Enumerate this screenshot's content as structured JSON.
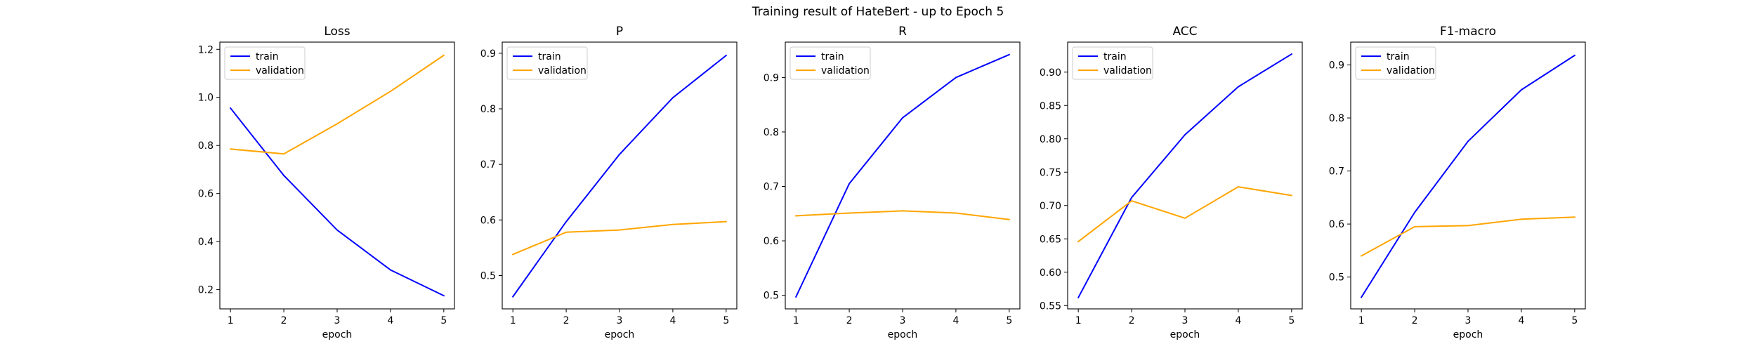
{
  "figure": {
    "title": "Training result of HateBert - up to Epoch 5"
  },
  "colors": {
    "train": "#0000ff",
    "validation": "#ffa500"
  },
  "chart_data": [
    {
      "type": "line",
      "title": "Loss",
      "xlabel": "epoch",
      "ylabel": "",
      "x": [
        1,
        2,
        3,
        4,
        5
      ],
      "xlim": [
        0.8,
        5.2
      ],
      "ylim": [
        0.12,
        1.23
      ],
      "yticks": [
        0.2,
        0.4,
        0.6,
        0.8,
        1.0,
        1.2
      ],
      "ytick_labels": [
        "0.2",
        "0.4",
        "0.6",
        "0.8",
        "1.0",
        "1.2"
      ],
      "legend": "upper left",
      "grid": false,
      "series": [
        {
          "name": "train",
          "values": [
            0.955,
            0.675,
            0.448,
            0.282,
            0.175
          ]
        },
        {
          "name": "validation",
          "values": [
            0.785,
            0.765,
            0.89,
            1.025,
            1.175
          ]
        }
      ]
    },
    {
      "type": "line",
      "title": "P",
      "xlabel": "epoch",
      "ylabel": "",
      "x": [
        1,
        2,
        3,
        4,
        5
      ],
      "xlim": [
        0.8,
        5.2
      ],
      "ylim": [
        0.44,
        0.92
      ],
      "yticks": [
        0.5,
        0.6,
        0.7,
        0.8,
        0.9
      ],
      "ytick_labels": [
        "0.5",
        "0.6",
        "0.7",
        "0.8",
        "0.9"
      ],
      "legend": "upper left",
      "grid": false,
      "series": [
        {
          "name": "train",
          "values": [
            0.462,
            0.597,
            0.718,
            0.82,
            0.896
          ]
        },
        {
          "name": "validation",
          "values": [
            0.538,
            0.578,
            0.582,
            0.592,
            0.597
          ]
        }
      ]
    },
    {
      "type": "line",
      "title": "R",
      "xlabel": "epoch",
      "ylabel": "",
      "x": [
        1,
        2,
        3,
        4,
        5
      ],
      "xlim": [
        0.8,
        5.2
      ],
      "ylim": [
        0.475,
        0.965
      ],
      "yticks": [
        0.5,
        0.6,
        0.7,
        0.8,
        0.9
      ],
      "ytick_labels": [
        "0.5",
        "0.6",
        "0.7",
        "0.8",
        "0.9"
      ],
      "legend": "upper left",
      "grid": false,
      "series": [
        {
          "name": "train",
          "values": [
            0.497,
            0.705,
            0.826,
            0.9,
            0.942
          ]
        },
        {
          "name": "validation",
          "values": [
            0.646,
            0.651,
            0.655,
            0.651,
            0.639
          ]
        }
      ]
    },
    {
      "type": "line",
      "title": "ACC",
      "xlabel": "epoch",
      "ylabel": "",
      "x": [
        1,
        2,
        3,
        4,
        5
      ],
      "xlim": [
        0.8,
        5.2
      ],
      "ylim": [
        0.545,
        0.945
      ],
      "yticks": [
        0.55,
        0.6,
        0.65,
        0.7,
        0.75,
        0.8,
        0.85,
        0.9
      ],
      "ytick_labels": [
        "0.55",
        "0.60",
        "0.65",
        "0.70",
        "0.75",
        "0.80",
        "0.85",
        "0.90"
      ],
      "legend": "upper left",
      "grid": false,
      "series": [
        {
          "name": "train",
          "values": [
            0.562,
            0.712,
            0.806,
            0.878,
            0.927
          ]
        },
        {
          "name": "validation",
          "values": [
            0.646,
            0.707,
            0.681,
            0.728,
            0.715
          ]
        }
      ]
    },
    {
      "type": "line",
      "title": "F1-macro",
      "xlabel": "epoch",
      "ylabel": "",
      "x": [
        1,
        2,
        3,
        4,
        5
      ],
      "xlim": [
        0.8,
        5.2
      ],
      "ylim": [
        0.44,
        0.943
      ],
      "yticks": [
        0.5,
        0.6,
        0.7,
        0.8,
        0.9
      ],
      "ytick_labels": [
        "0.5",
        "0.6",
        "0.7",
        "0.8",
        "0.9"
      ],
      "legend": "upper left",
      "grid": false,
      "series": [
        {
          "name": "train",
          "values": [
            0.462,
            0.622,
            0.756,
            0.853,
            0.918
          ]
        },
        {
          "name": "validation",
          "values": [
            0.54,
            0.595,
            0.597,
            0.609,
            0.613
          ]
        }
      ]
    }
  ]
}
